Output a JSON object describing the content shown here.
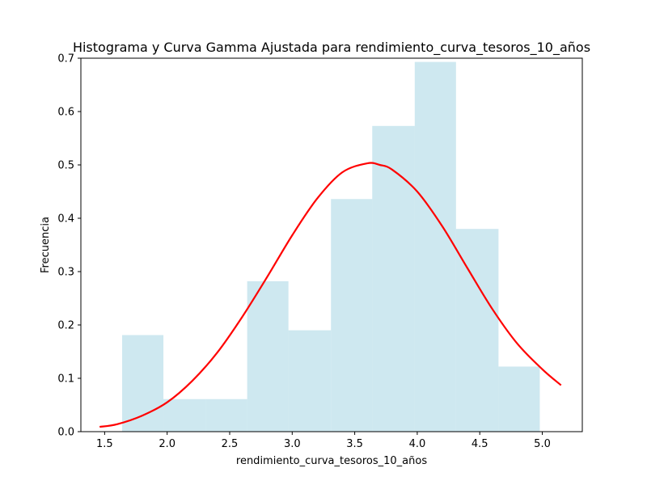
{
  "chart_data": {
    "type": "bar",
    "title": "Histograma y Curva Gamma Ajustada para rendimiento_curva_tesoros_10_años",
    "xlabel": "rendimiento_curva_tesoros_10_años",
    "ylabel": "Frecuencia",
    "xlim": [
      1.31,
      5.32
    ],
    "ylim": [
      0,
      0.7
    ],
    "x_ticks": [
      "1.5",
      "2.0",
      "2.5",
      "3.0",
      "3.5",
      "4.0",
      "4.5",
      "5.0"
    ],
    "y_ticks": [
      "0.0",
      "0.1",
      "0.2",
      "0.3",
      "0.4",
      "0.5",
      "0.6",
      "0.7"
    ],
    "grid": false,
    "histogram": {
      "color": "#add8e6",
      "bins": [
        {
          "x0": 1.64,
          "x1": 1.97,
          "value": 0.181
        },
        {
          "x0": 1.97,
          "x1": 2.31,
          "value": 0.061
        },
        {
          "x0": 2.31,
          "x1": 2.64,
          "value": 0.061
        },
        {
          "x0": 2.64,
          "x1": 2.97,
          "value": 0.282
        },
        {
          "x0": 2.97,
          "x1": 3.31,
          "value": 0.19
        },
        {
          "x0": 3.31,
          "x1": 3.64,
          "value": 0.436
        },
        {
          "x0": 3.64,
          "x1": 3.98,
          "value": 0.573
        },
        {
          "x0": 3.98,
          "x1": 4.31,
          "value": 0.693
        },
        {
          "x0": 4.31,
          "x1": 4.65,
          "value": 0.38
        },
        {
          "x0": 4.65,
          "x1": 4.98,
          "value": 0.122
        }
      ]
    },
    "curve": {
      "color": "#ff0000",
      "points": [
        [
          1.46,
          0.009
        ],
        [
          1.6,
          0.014
        ],
        [
          1.8,
          0.03
        ],
        [
          2.0,
          0.055
        ],
        [
          2.2,
          0.095
        ],
        [
          2.4,
          0.148
        ],
        [
          2.6,
          0.215
        ],
        [
          2.8,
          0.29
        ],
        [
          3.0,
          0.368
        ],
        [
          3.2,
          0.437
        ],
        [
          3.4,
          0.486
        ],
        [
          3.6,
          0.503
        ],
        [
          3.7,
          0.5
        ],
        [
          3.8,
          0.491
        ],
        [
          4.0,
          0.45
        ],
        [
          4.2,
          0.385
        ],
        [
          4.4,
          0.307
        ],
        [
          4.6,
          0.23
        ],
        [
          4.8,
          0.165
        ],
        [
          5.0,
          0.117
        ],
        [
          5.15,
          0.087
        ]
      ]
    }
  }
}
